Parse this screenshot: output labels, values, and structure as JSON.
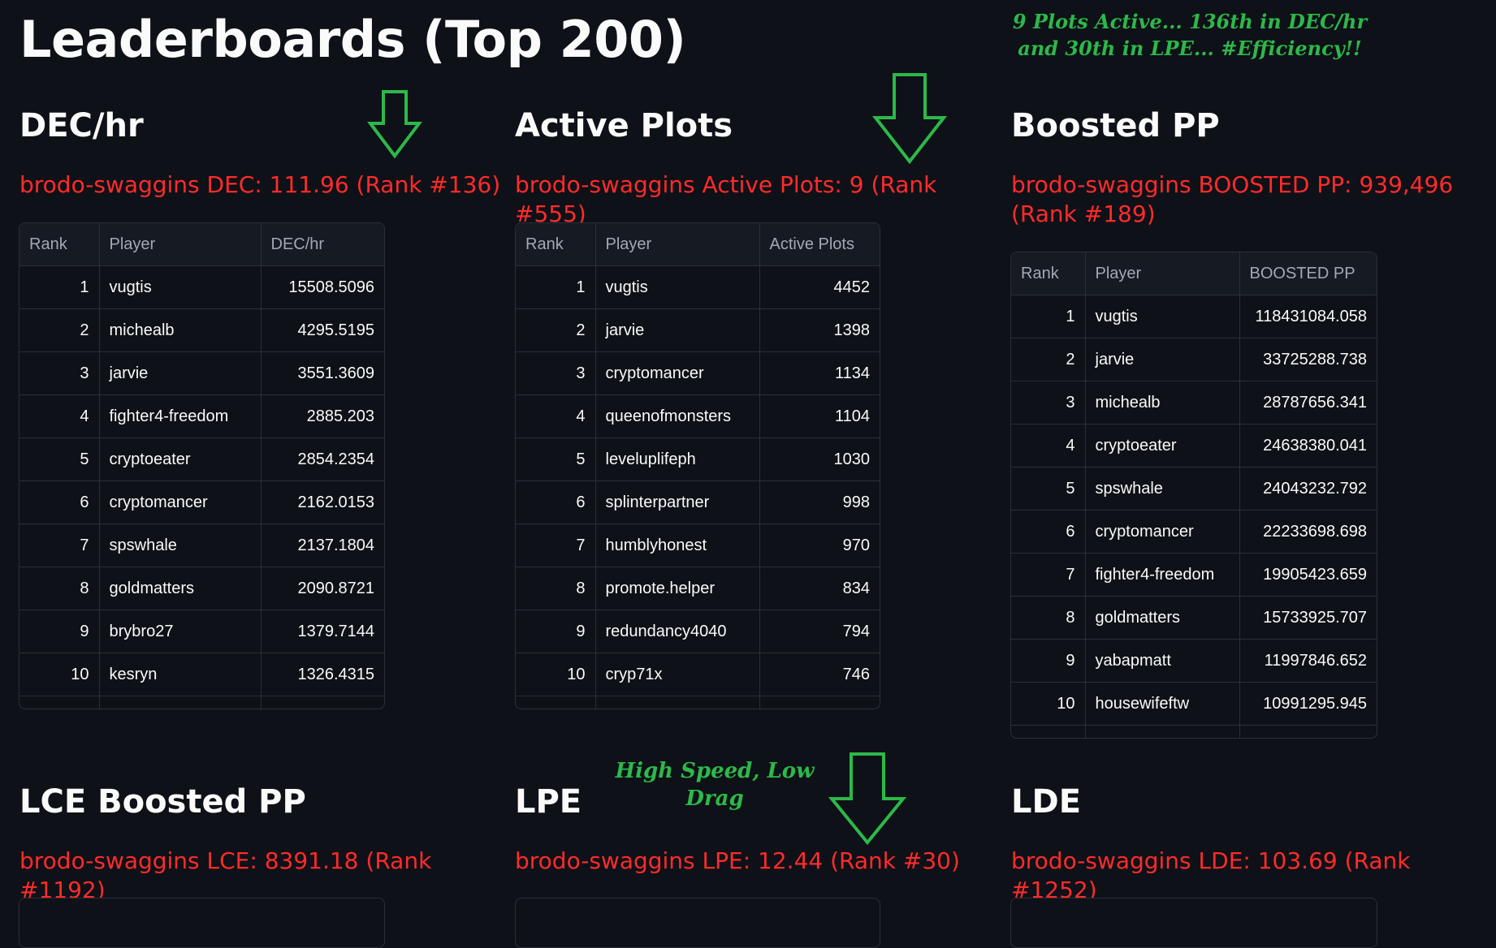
{
  "page": {
    "title": "Leaderboards (Top 200)"
  },
  "annotations": {
    "top_line1": "9 Plots Active... 136th in DEC/hr",
    "top_line2": "and 30th in LPE... #Efficiency!!",
    "mid": "High Speed, Low Drag"
  },
  "colors": {
    "background": "#0e1117",
    "stat": "#ff2b2b",
    "annotation": "#2db84a",
    "arrow": "#2db84a"
  },
  "icons": {
    "arrow": "down-arrow-icon"
  },
  "sections": {
    "dec": {
      "title": "DEC/hr",
      "stat": "brodo-swaggins DEC: 111.96 (Rank #136)",
      "columns": [
        "Rank",
        "Player",
        "DEC/hr"
      ],
      "rows": [
        {
          "rank": "1",
          "player": "vugtis",
          "value": "15508.5096"
        },
        {
          "rank": "2",
          "player": "michealb",
          "value": "4295.5195"
        },
        {
          "rank": "3",
          "player": "jarvie",
          "value": "3551.3609"
        },
        {
          "rank": "4",
          "player": "fighter4-freedom",
          "value": "2885.203"
        },
        {
          "rank": "5",
          "player": "cryptoeater",
          "value": "2854.2354"
        },
        {
          "rank": "6",
          "player": "cryptomancer",
          "value": "2162.0153"
        },
        {
          "rank": "7",
          "player": "spswhale",
          "value": "2137.1804"
        },
        {
          "rank": "8",
          "player": "goldmatters",
          "value": "2090.8721"
        },
        {
          "rank": "9",
          "player": "brybro27",
          "value": "1379.7144"
        },
        {
          "rank": "10",
          "player": "kesryn",
          "value": "1326.4315"
        }
      ]
    },
    "plots": {
      "title": "Active Plots",
      "stat": "brodo-swaggins Active Plots: 9 (Rank #555)",
      "columns": [
        "Rank",
        "Player",
        "Active Plots"
      ],
      "rows": [
        {
          "rank": "1",
          "player": "vugtis",
          "value": "4452"
        },
        {
          "rank": "2",
          "player": "jarvie",
          "value": "1398"
        },
        {
          "rank": "3",
          "player": "cryptomancer",
          "value": "1134"
        },
        {
          "rank": "4",
          "player": "queenofmonsters",
          "value": "1104"
        },
        {
          "rank": "5",
          "player": "leveluplifeph",
          "value": "1030"
        },
        {
          "rank": "6",
          "player": "splinterpartner",
          "value": "998"
        },
        {
          "rank": "7",
          "player": "humblyhonest",
          "value": "970"
        },
        {
          "rank": "8",
          "player": "promote.helper",
          "value": "834"
        },
        {
          "rank": "9",
          "player": "redundancy4040",
          "value": "794"
        },
        {
          "rank": "10",
          "player": "cryp71x",
          "value": "746"
        }
      ]
    },
    "boosted": {
      "title": "Boosted PP",
      "stat": "brodo-swaggins BOOSTED PP: 939,496 (Rank #189)",
      "columns": [
        "Rank",
        "Player",
        "BOOSTED PP"
      ],
      "rows": [
        {
          "rank": "1",
          "player": "vugtis",
          "value": "118431084.058"
        },
        {
          "rank": "2",
          "player": "jarvie",
          "value": "33725288.738"
        },
        {
          "rank": "3",
          "player": "michealb",
          "value": "28787656.341"
        },
        {
          "rank": "4",
          "player": "cryptoeater",
          "value": "24638380.041"
        },
        {
          "rank": "5",
          "player": "spswhale",
          "value": "24043232.792"
        },
        {
          "rank": "6",
          "player": "cryptomancer",
          "value": "22233698.698"
        },
        {
          "rank": "7",
          "player": "fighter4-freedom",
          "value": "19905423.659"
        },
        {
          "rank": "8",
          "player": "goldmatters",
          "value": "15733925.707"
        },
        {
          "rank": "9",
          "player": "yabapmatt",
          "value": "11997846.652"
        },
        {
          "rank": "10",
          "player": "housewifeftw",
          "value": "10991295.945"
        }
      ]
    },
    "lce": {
      "title": "LCE Boosted PP",
      "stat": "brodo-swaggins LCE: 8391.18 (Rank #1192)"
    },
    "lpe": {
      "title": "LPE",
      "stat": "brodo-swaggins LPE: 12.44 (Rank #30)"
    },
    "lde": {
      "title": "LDE",
      "stat": "brodo-swaggins LDE: 103.69 (Rank #1252)"
    }
  }
}
